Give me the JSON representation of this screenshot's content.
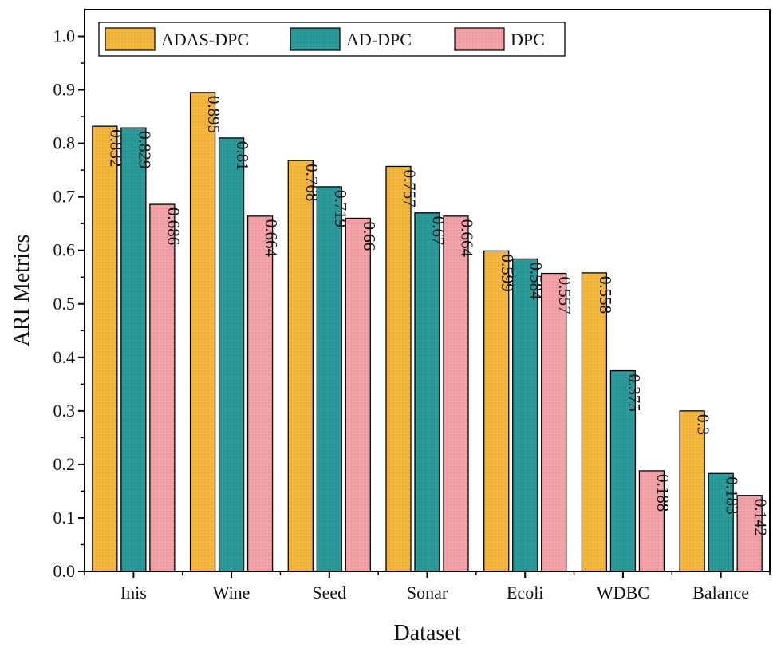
{
  "chart_data": {
    "type": "bar",
    "xlabel": "Dataset",
    "ylabel": "ARI Metrics",
    "ylim": [
      0,
      1.05
    ],
    "yticks": [
      "0.0",
      "0.1",
      "0.2",
      "0.3",
      "0.4",
      "0.5",
      "0.6",
      "0.7",
      "0.8",
      "0.9",
      "1.0"
    ],
    "categories": [
      "Inis",
      "Wine",
      "Seed",
      "Sonar",
      "Ecoli",
      "WDBC",
      "Balance"
    ],
    "legend_position": "top-left",
    "grid": false,
    "series": [
      {
        "name": "ADAS-DPC",
        "color": "#f5b83d",
        "values": [
          0.832,
          0.895,
          0.768,
          0.757,
          0.599,
          0.558,
          0.3
        ],
        "labels": [
          "0.832",
          "0.895",
          "0.768",
          "0.757",
          "0.599",
          "0.558",
          "0.3"
        ]
      },
      {
        "name": "AD-DPC",
        "color": "#2a9a9a",
        "values": [
          0.829,
          0.81,
          0.719,
          0.67,
          0.584,
          0.375,
          0.183
        ],
        "labels": [
          "0.829",
          "0.81",
          "0.719",
          "0.67",
          "0.584",
          "0.375",
          "0.183"
        ]
      },
      {
        "name": "DPC",
        "color": "#f5a3a8",
        "values": [
          0.686,
          0.664,
          0.66,
          0.664,
          0.557,
          0.188,
          0.142
        ],
        "labels": [
          "0.686",
          "0.664",
          "0.66",
          "0.664",
          "0.557",
          "0.188",
          "0.142"
        ]
      }
    ]
  }
}
